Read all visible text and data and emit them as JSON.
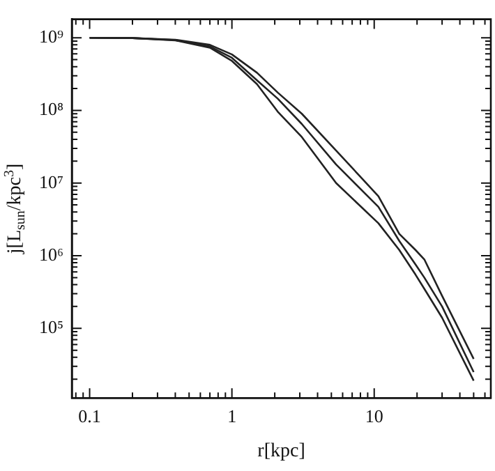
{
  "chart_data": {
    "type": "line",
    "xlabel": "r[kpc]",
    "ylabel": "j[L$_{sun}$/kpc$^{3}$]",
    "log": "xy",
    "marker": "none",
    "line_style": "solid",
    "grid": false,
    "legend": false,
    "x": [
      0.1,
      0.2,
      0.4,
      0.7,
      1,
      1.5,
      2.1,
      3.1,
      5.4,
      10.7,
      15,
      19.5,
      22.5,
      30,
      50
    ],
    "series": [
      {
        "color": "#222222",
        "values": [
          1000000000.0,
          990000000.0,
          940000000.0,
          800000000.0,
          590000000.0,
          330000000.0,
          176000000.0,
          90000000.0,
          28000000.0,
          6600000.0,
          2000000.0,
          1200000.0,
          890000.0,
          280000.0,
          38000.0
        ]
      },
      {
        "color": "#222222",
        "values": [
          1000000000.0,
          990000000.0,
          930000000.0,
          760000000.0,
          530000000.0,
          260000000.0,
          145000000.0,
          65000000.0,
          18000000.0,
          4700000.0,
          1600000.0,
          760000.0,
          500000.0,
          200000.0,
          25000.0
        ]
      },
      {
        "color": "#222222",
        "values": [
          1000000000.0,
          990000000.0,
          920000000.0,
          730000000.0,
          480000000.0,
          230000000.0,
          96000000.0,
          43000000.0,
          10000000.0,
          2800000.0,
          1200000.0,
          550000.0,
          350000.0,
          140000.0,
          19000.0
        ]
      }
    ],
    "xlim": [
      0.075,
      66
    ],
    "ylim": [
      11000,
      1800000000.0
    ],
    "xticks": [
      {
        "value": 0.08,
        "label": null
      },
      {
        "value": 0.09,
        "label": null
      },
      0.1,
      {
        "value": 0.2,
        "label": null
      },
      {
        "value": 0.3,
        "label": null
      },
      {
        "value": 0.4,
        "label": null
      },
      {
        "value": 0.5,
        "label": null
      },
      {
        "value": 0.6,
        "label": null
      },
      {
        "value": 0.7,
        "label": null
      },
      {
        "value": 0.8,
        "label": null
      },
      {
        "value": 0.9,
        "label": null
      },
      1,
      {
        "value": 2,
        "label": null
      },
      {
        "value": 3,
        "label": null
      },
      {
        "value": 4,
        "label": null
      },
      {
        "value": 5,
        "label": null
      },
      {
        "value": 6,
        "label": null
      },
      {
        "value": 7,
        "label": null
      },
      {
        "value": 8,
        "label": null
      },
      {
        "value": 9,
        "label": null
      },
      10,
      {
        "value": 20,
        "label": null
      },
      {
        "value": 30,
        "label": null
      },
      {
        "value": 40,
        "label": null
      },
      {
        "value": 50,
        "label": null
      },
      {
        "value": 60,
        "label": null
      }
    ],
    "yticks": [
      {
        "value": 20000,
        "label": null
      },
      {
        "value": 30000,
        "label": null
      },
      {
        "value": 40000,
        "label": null
      },
      {
        "value": 50000,
        "label": null
      },
      {
        "value": 60000,
        "label": null
      },
      {
        "value": 70000,
        "label": null
      },
      {
        "value": 80000,
        "label": null
      },
      {
        "value": 90000,
        "label": null
      },
      {
        "value": 100000,
        "label": "10⁵"
      },
      {
        "value": 200000,
        "label": null
      },
      {
        "value": 300000,
        "label": null
      },
      {
        "value": 400000,
        "label": null
      },
      {
        "value": 500000,
        "label": null
      },
      {
        "value": 600000,
        "label": null
      },
      {
        "value": 700000,
        "label": null
      },
      {
        "value": 800000,
        "label": null
      },
      {
        "value": 900000,
        "label": null
      },
      {
        "value": 1000000,
        "label": "10⁶"
      },
      {
        "value": 2000000,
        "label": null
      },
      {
        "value": 3000000,
        "label": null
      },
      {
        "value": 4000000,
        "label": null
      },
      {
        "value": 5000000,
        "label": null
      },
      {
        "value": 6000000,
        "label": null
      },
      {
        "value": 7000000,
        "label": null
      },
      {
        "value": 8000000,
        "label": null
      },
      {
        "value": 9000000,
        "label": null
      },
      {
        "value": 10000000,
        "label": "10⁷"
      },
      {
        "value": 20000000,
        "label": null
      },
      {
        "value": 30000000,
        "label": null
      },
      {
        "value": 40000000,
        "label": null
      },
      {
        "value": 50000000,
        "label": null
      },
      {
        "value": 60000000,
        "label": null
      },
      {
        "value": 70000000,
        "label": null
      },
      {
        "value": 80000000,
        "label": null
      },
      {
        "value": 90000000,
        "label": null
      },
      {
        "value": 100000000,
        "label": "10⁸"
      },
      {
        "value": 200000000,
        "label": null
      },
      {
        "value": 300000000,
        "label": null
      },
      {
        "value": 400000000,
        "label": null
      },
      {
        "value": 500000000,
        "label": null
      },
      {
        "value": 600000000,
        "label": null
      },
      {
        "value": 700000000,
        "label": null
      },
      {
        "value": 800000000,
        "label": null
      },
      {
        "value": 900000000,
        "label": null
      },
      {
        "value": 1000000000,
        "label": "10⁹"
      }
    ]
  }
}
